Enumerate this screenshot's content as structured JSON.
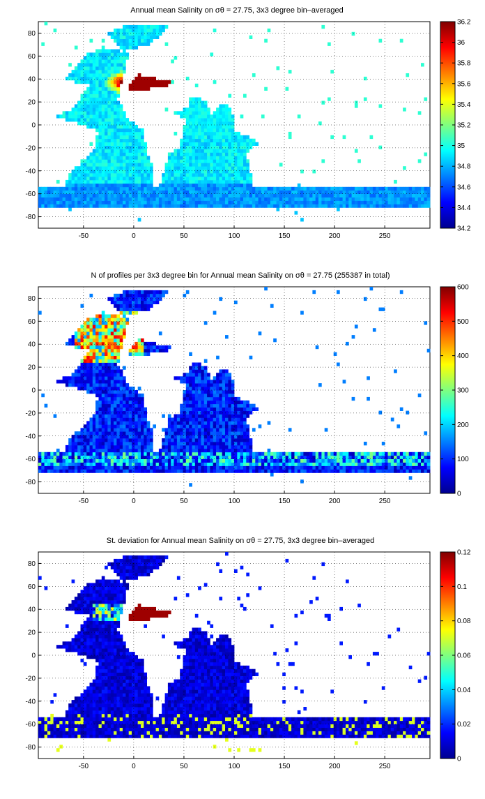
{
  "figure": {
    "panels": [
      {
        "id": "salinity",
        "title": "Annual mean Salinity on σθ = 27.75, 3x3 degree bin–averaged",
        "colorbar": {
          "ticks": [
            "34.2",
            "34.4",
            "34.6",
            "34.8",
            "35",
            "35.2",
            "35.4",
            "35.6",
            "35.8",
            "36",
            "36.2"
          ],
          "min": 34.2,
          "max": 36.2
        }
      },
      {
        "id": "profiles",
        "title": "N of profiles per 3x3 degree bin for Annual mean Salinity on σθ = 27.75 (255387 in total)",
        "colorbar": {
          "ticks": [
            "0",
            "100",
            "200",
            "300",
            "400",
            "500",
            "600"
          ],
          "min": 0,
          "max": 600
        }
      },
      {
        "id": "stddev",
        "title": "St. deviation for Annual mean Salinity on σθ = 27.75, 3x3 degree bin–averaged",
        "colorbar": {
          "ticks": [
            "0",
            "0.02",
            "0.04",
            "0.06",
            "0.08",
            "0.1",
            "0.12"
          ],
          "min": 0,
          "max": 0.12
        }
      }
    ],
    "axes": {
      "x_ticks": [
        "-50",
        "0",
        "50",
        "100",
        "150",
        "200",
        "250"
      ],
      "y_ticks": [
        "80",
        "60",
        "40",
        "20",
        "0",
        "-20",
        "-40",
        "-60",
        "-80"
      ],
      "xlim": [
        -95,
        295
      ],
      "ylim": [
        -90,
        90
      ],
      "grid": "dotted"
    },
    "colormap": "jet"
  }
}
